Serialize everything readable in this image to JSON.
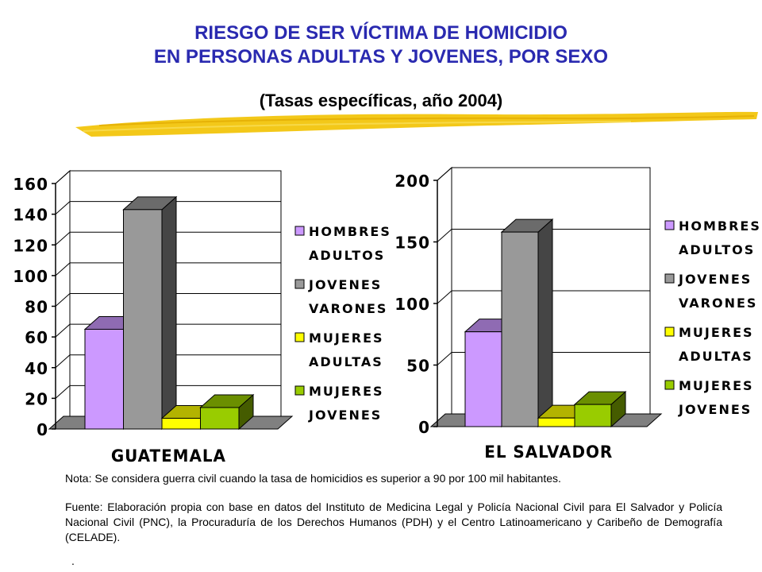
{
  "title_line1": "RIESGO DE SER VÍCTIMA DE HOMICIDIO",
  "title_line2": "EN PERSONAS ADULTAS Y JOVENES, POR SEXO",
  "subtitle": "(Tasas específicas, año 2004)",
  "note": "Nota: Se considera guerra civil cuando la tasa de homicidios es superior a 90 por 100 mil habitantes.",
  "source": "Fuente: Elaboración propia con base en datos del Instituto de Medicina Legal y Policía Nacional Civil para El Salvador y Policía Nacional Civil (PNC), la Procuraduría de los Derechos Humanos (PDH) y el Centro Latinoamericano y Caribeño de Demografía (CELADE).",
  "trailing_mark": ".",
  "colors": {
    "title": "#2a2ab0",
    "hombres_adultos": "#cc99ff",
    "jovenes_varones": "#999999",
    "mujeres_adultas": "#ffff00",
    "mujeres_jovenes": "#99cc00",
    "brush": "#f2c200"
  },
  "chart_data": [
    {
      "type": "bar",
      "category_label": "GUATEMALA",
      "series": [
        {
          "name": "HOMBRES ADULTOS",
          "value": 65
        },
        {
          "name": "JOVENES VARONES",
          "value": 143
        },
        {
          "name": "MUJERES ADULTAS",
          "value": 7
        },
        {
          "name": "MUJERES JOVENES",
          "value": 14
        }
      ],
      "yticks": [
        "0",
        "20",
        "40",
        "60",
        "80",
        "100",
        "120",
        "140",
        "160"
      ],
      "ylim": [
        0,
        160
      ],
      "grid": true,
      "legend_position": "right",
      "legend": [
        {
          "line1": "HOMBRES",
          "line2": "ADULTOS"
        },
        {
          "line1": "JOVENES",
          "line2": "VARONES"
        },
        {
          "line1": "MUJERES",
          "line2": "ADULTAS"
        },
        {
          "line1": "MUJERES",
          "line2": "JOVENES"
        }
      ]
    },
    {
      "type": "bar",
      "category_label": "EL SALVADOR",
      "series": [
        {
          "name": "HOMBRES ADULTOS",
          "value": 77
        },
        {
          "name": "JOVENES VARONES",
          "value": 158
        },
        {
          "name": "MUJERES ADULTAS",
          "value": 7
        },
        {
          "name": "MUJERES JOVENES",
          "value": 18
        }
      ],
      "yticks": [
        "0",
        "50",
        "100",
        "150",
        "200"
      ],
      "ylim": [
        0,
        200
      ],
      "grid": true,
      "legend_position": "right",
      "legend": [
        {
          "line1": "HOMBRES",
          "line2": "ADULTOS"
        },
        {
          "line1": "JOVENES",
          "line2": "VARONES"
        },
        {
          "line1": "MUJERES",
          "line2": "ADULTAS"
        },
        {
          "line1": "MUJERES",
          "line2": "JOVENES"
        }
      ]
    }
  ]
}
